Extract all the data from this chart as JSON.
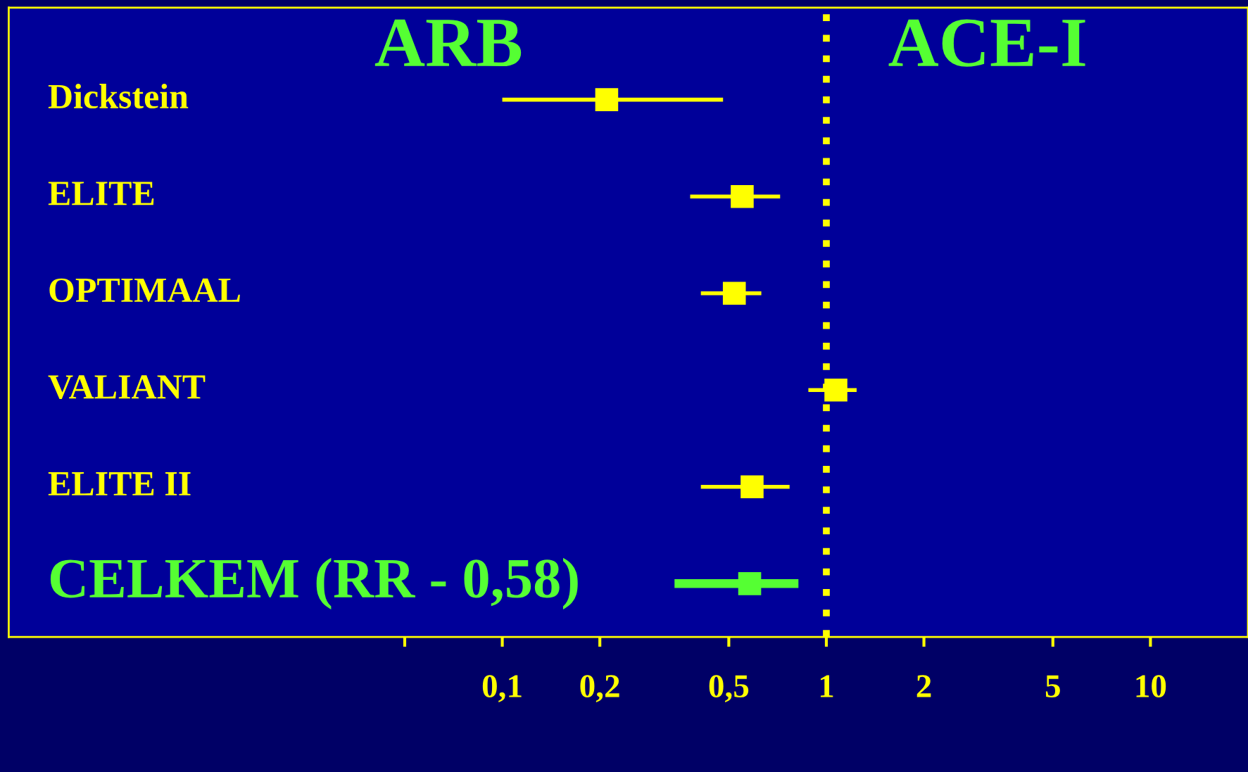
{
  "chart_data": {
    "type": "scatter",
    "orientation": "horizontal",
    "marker": "square",
    "categories": [
      "Dickstein",
      "ELITE",
      "OPTIMAAL",
      "VALIANT",
      "ELITE II",
      "CELKEM (RR - 0,58)"
    ],
    "values": [
      0.21,
      0.55,
      0.52,
      1.07,
      0.59,
      0.58
    ],
    "errors": [
      [
        0.1,
        0.48
      ],
      [
        0.38,
        0.72
      ],
      [
        0.41,
        0.63
      ],
      [
        0.88,
        1.24
      ],
      [
        0.41,
        0.77
      ],
      [
        0.34,
        0.82
      ]
    ],
    "colors": [
      "#ffff00",
      "#ffff00",
      "#ffff00",
      "#ffff00",
      "#ffff00",
      "#55ff33"
    ],
    "log": "x",
    "xlim": [
      0.003,
      20
    ],
    "xticks": [
      {
        "value": 0.05,
        "label": null
      },
      {
        "value": 0.1,
        "label": "0,1"
      },
      {
        "value": 0.2,
        "label": "0,2"
      },
      {
        "value": 0.5,
        "label": "0,5"
      },
      1,
      2,
      5,
      10
    ],
    "ref_lines": [
      {
        "axis": "x",
        "value": 1,
        "color": "#ffff00",
        "line_style": "dotted"
      }
    ],
    "annotations": [
      "ARB",
      "ACE-I"
    ],
    "grid": false
  }
}
